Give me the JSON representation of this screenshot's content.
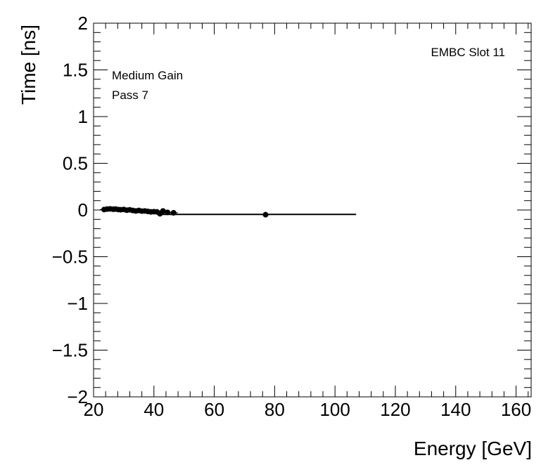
{
  "chart_data": {
    "type": "scatter",
    "xlabel": "Energy [GeV]",
    "ylabel": "Time [ns]",
    "xlim": [
      20,
      165
    ],
    "ylim": [
      -2,
      2
    ],
    "x_ticks": [
      20,
      40,
      60,
      80,
      100,
      120,
      140,
      160
    ],
    "y_ticks": [
      -2,
      -1.5,
      -1,
      -0.5,
      0,
      0.5,
      1,
      1.5,
      2
    ],
    "x_tick_labels": [
      "20",
      "40",
      "60",
      "80",
      "100",
      "120",
      "140",
      "160"
    ],
    "y_tick_labels": [
      "−2",
      "−1.5",
      "−1",
      "−0.5",
      "0",
      "0.5",
      "1",
      "1.5",
      "2"
    ],
    "annotations": [
      "EMBC Slot 11",
      "Medium Gain",
      "Pass 7"
    ],
    "grid": false,
    "points": [
      {
        "x": 23.5,
        "y": 0.005
      },
      {
        "x": 24.5,
        "y": 0.01
      },
      {
        "x": 25.5,
        "y": 0.012
      },
      {
        "x": 26.5,
        "y": 0.008
      },
      {
        "x": 27.3,
        "y": 0.01
      },
      {
        "x": 28.2,
        "y": 0.005
      },
      {
        "x": 29.0,
        "y": 0.003
      },
      {
        "x": 30.0,
        "y": 0.006
      },
      {
        "x": 31.0,
        "y": -0.002
      },
      {
        "x": 32.0,
        "y": 0.002
      },
      {
        "x": 33.0,
        "y": -0.005
      },
      {
        "x": 34.0,
        "y": -0.01
      },
      {
        "x": 35.0,
        "y": -0.005
      },
      {
        "x": 36.0,
        "y": -0.012
      },
      {
        "x": 37.0,
        "y": -0.01
      },
      {
        "x": 38.0,
        "y": -0.015
      },
      {
        "x": 39.0,
        "y": -0.02
      },
      {
        "x": 40.0,
        "y": -0.018
      },
      {
        "x": 41.0,
        "y": -0.02
      },
      {
        "x": 42.0,
        "y": -0.04
      },
      {
        "x": 43.0,
        "y": -0.01
      },
      {
        "x": 44.5,
        "y": -0.025
      },
      {
        "x": 46.5,
        "y": -0.03
      },
      {
        "x": 77.0,
        "y": -0.05
      }
    ],
    "fit_line": {
      "x": [
        42.0,
        107.0
      ],
      "y": [
        -0.047,
        -0.047
      ]
    }
  }
}
